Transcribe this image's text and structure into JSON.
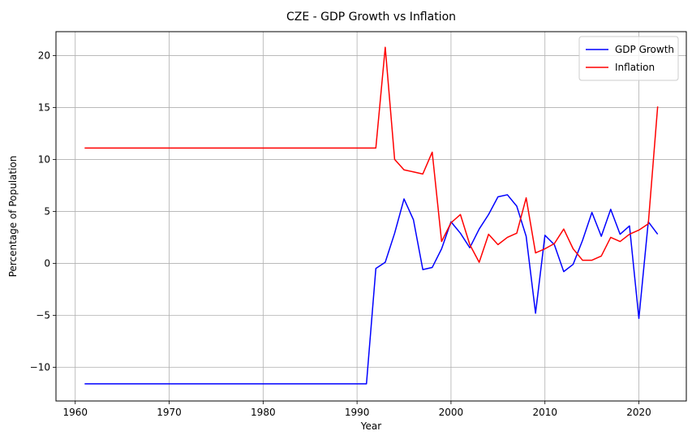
{
  "chart_data": {
    "type": "line",
    "title": "CZE - GDP Growth vs Inflation",
    "xlabel": "Year",
    "ylabel": "Percentage of Population",
    "xlim": [
      1957.95,
      2025.05
    ],
    "ylim": [
      -13.25,
      22.3
    ],
    "xticks": [
      1960,
      1970,
      1980,
      1990,
      2000,
      2010,
      2020
    ],
    "yticks": [
      -10,
      -5,
      0,
      5,
      10,
      15,
      20
    ],
    "grid": true,
    "legend_position": "top-right",
    "series": [
      {
        "name": "GDP Growth",
        "color": "#0000ff",
        "points": [
          [
            1961,
            -11.6
          ],
          [
            1991,
            -11.6
          ],
          [
            1992,
            -0.5
          ],
          [
            1993,
            0.1
          ],
          [
            1994,
            2.9
          ],
          [
            1995,
            6.2
          ],
          [
            1996,
            4.2
          ],
          [
            1997,
            -0.6
          ],
          [
            1998,
            -0.4
          ],
          [
            1999,
            1.4
          ],
          [
            2000,
            4.0
          ],
          [
            2001,
            2.9
          ],
          [
            2002,
            1.5
          ],
          [
            2003,
            3.3
          ],
          [
            2004,
            4.7
          ],
          [
            2005,
            6.4
          ],
          [
            2006,
            6.6
          ],
          [
            2007,
            5.5
          ],
          [
            2008,
            2.6
          ],
          [
            2009,
            -4.8
          ],
          [
            2010,
            2.7
          ],
          [
            2011,
            1.8
          ],
          [
            2012,
            -0.8
          ],
          [
            2013,
            -0.1
          ],
          [
            2014,
            2.2
          ],
          [
            2015,
            4.9
          ],
          [
            2016,
            2.6
          ],
          [
            2017,
            5.2
          ],
          [
            2018,
            2.8
          ],
          [
            2019,
            3.6
          ],
          [
            2020,
            -5.3
          ],
          [
            2021,
            4.0
          ],
          [
            2022,
            2.8
          ]
        ]
      },
      {
        "name": "Inflation",
        "color": "#ff0000",
        "points": [
          [
            1961,
            11.1
          ],
          [
            1992,
            11.1
          ],
          [
            1993,
            20.8
          ],
          [
            1994,
            10.0
          ],
          [
            1995,
            9.0
          ],
          [
            1996,
            8.8
          ],
          [
            1997,
            8.6
          ],
          [
            1998,
            10.7
          ],
          [
            1999,
            2.1
          ],
          [
            2000,
            3.9
          ],
          [
            2001,
            4.7
          ],
          [
            2002,
            1.8
          ],
          [
            2003,
            0.1
          ],
          [
            2004,
            2.8
          ],
          [
            2005,
            1.8
          ],
          [
            2006,
            2.5
          ],
          [
            2007,
            2.9
          ],
          [
            2008,
            6.3
          ],
          [
            2009,
            1.0
          ],
          [
            2010,
            1.4
          ],
          [
            2011,
            1.9
          ],
          [
            2012,
            3.3
          ],
          [
            2013,
            1.4
          ],
          [
            2014,
            0.3
          ],
          [
            2015,
            0.3
          ],
          [
            2016,
            0.7
          ],
          [
            2017,
            2.5
          ],
          [
            2018,
            2.1
          ],
          [
            2019,
            2.8
          ],
          [
            2020,
            3.2
          ],
          [
            2021,
            3.8
          ],
          [
            2022,
            15.1
          ]
        ]
      }
    ]
  }
}
